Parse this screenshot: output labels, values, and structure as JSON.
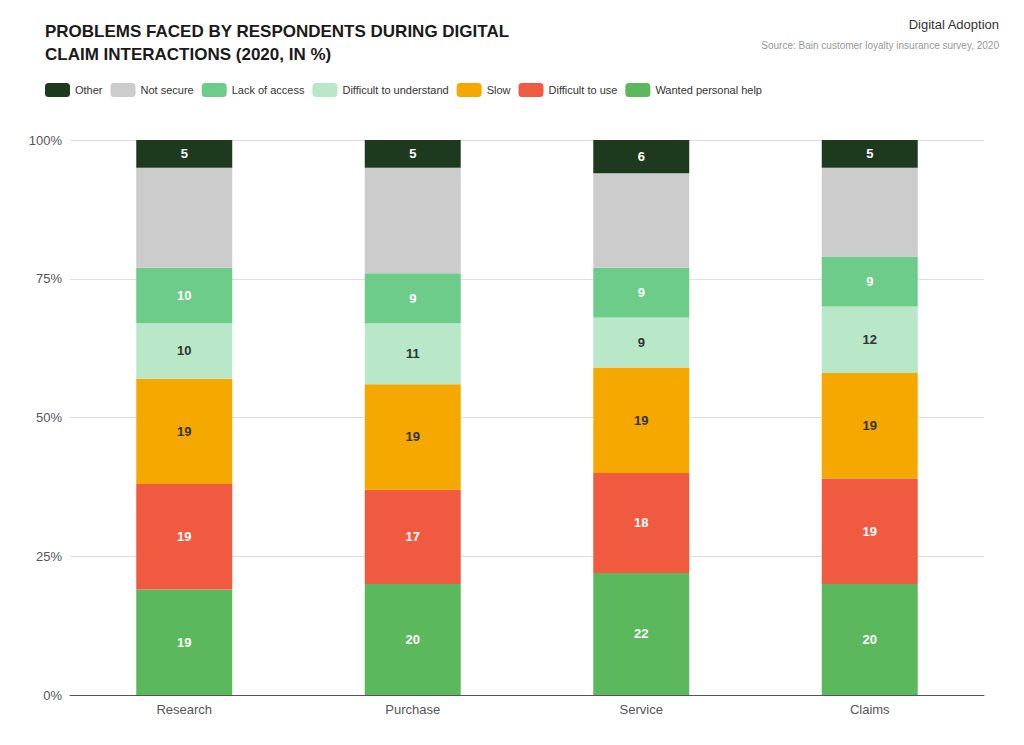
{
  "chart_data": {
    "type": "bar",
    "title": "PROBLEMS FACED BY RESPONDENTS DURING DIGITAL\nCLAIM INTERACTIONS (2020, IN %)",
    "categories": [
      "Research",
      "Purchase",
      "Service",
      "Claims"
    ],
    "series": [
      {
        "name": "Wanted personal help",
        "color": "#5cb85c",
        "values": [
          19,
          20,
          22,
          20
        ]
      },
      {
        "name": "Difficult to use",
        "color": "#f05a40",
        "values": [
          19,
          17,
          18,
          19
        ]
      },
      {
        "name": "Slow",
        "color": "#f5a800",
        "values": [
          19,
          19,
          19,
          19
        ]
      },
      {
        "name": "Difficult to understand",
        "color": "#b8e8c8",
        "values": [
          10,
          11,
          9,
          12
        ]
      },
      {
        "name": "Lack of access",
        "color": "#6dcc8a",
        "values": [
          10,
          9,
          9,
          9
        ]
      },
      {
        "name": "Not secure",
        "color": "#cccccc",
        "values": [
          18,
          19,
          17,
          16
        ],
        "data_labels": false
      },
      {
        "name": "Other",
        "color": "#1e3a1e",
        "values": [
          5,
          5,
          6,
          5
        ]
      }
    ],
    "stacked": true,
    "data_labels": true,
    "ylim": [
      0,
      100
    ],
    "yticks": [
      {
        "value": 0,
        "label": "0%"
      },
      {
        "value": 25,
        "label": "25%"
      },
      {
        "value": 50,
        "label": "50%"
      },
      {
        "value": 75,
        "label": "75%"
      },
      {
        "value": 100,
        "label": "100%"
      }
    ],
    "grid": true,
    "legend": "top-left",
    "annotations": [
      "Digital Adoption",
      "Source: Bain customer loyalty insurance survey, 2020"
    ]
  }
}
